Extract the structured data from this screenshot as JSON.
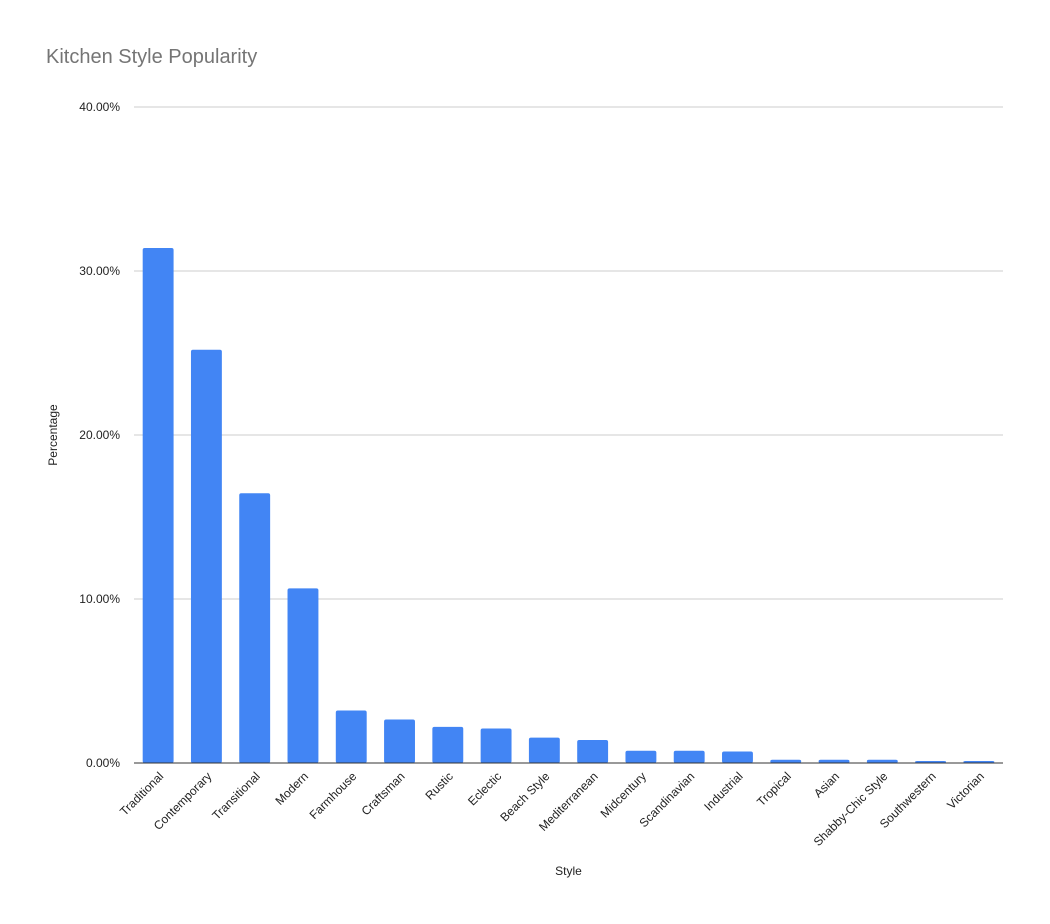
{
  "chart_data": {
    "type": "bar",
    "title": "Kitchen Style Popularity",
    "xlabel": "Style",
    "ylabel": "Percentage",
    "ylim": [
      0,
      40
    ],
    "yticks": [
      "0.00%",
      "10.00%",
      "20.00%",
      "30.00%",
      "40.00%"
    ],
    "grid": true,
    "legend": "none",
    "bar_color": "#4285f4",
    "categories": [
      "Traditional",
      "Contemporary",
      "Transitional",
      "Modern",
      "Farmhouse",
      "Craftsman",
      "Rustic",
      "Eclectic",
      "Beach Style",
      "Mediterranean",
      "Midcentury",
      "Scandinavian",
      "Industrial",
      "Tropical",
      "Asian",
      "Shabby-Chic Style",
      "Southwestern",
      "Victorian"
    ],
    "values": [
      31.4,
      25.2,
      16.45,
      10.65,
      3.2,
      2.65,
      2.2,
      2.1,
      1.55,
      1.4,
      0.75,
      0.75,
      0.7,
      0.2,
      0.2,
      0.2,
      0.12,
      0.12
    ]
  }
}
